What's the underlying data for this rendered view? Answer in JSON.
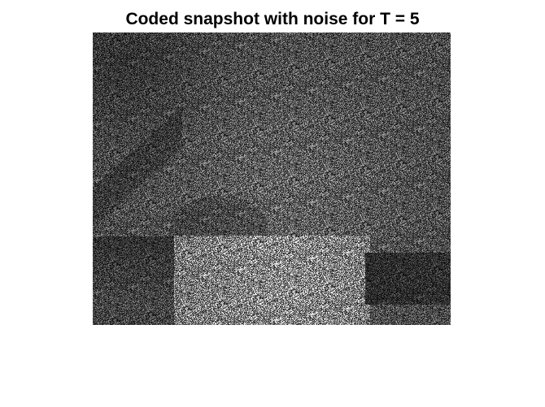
{
  "figure": {
    "title": "Coded snapshot with noise for T = 5",
    "image_description_colormap": "gray"
  }
}
